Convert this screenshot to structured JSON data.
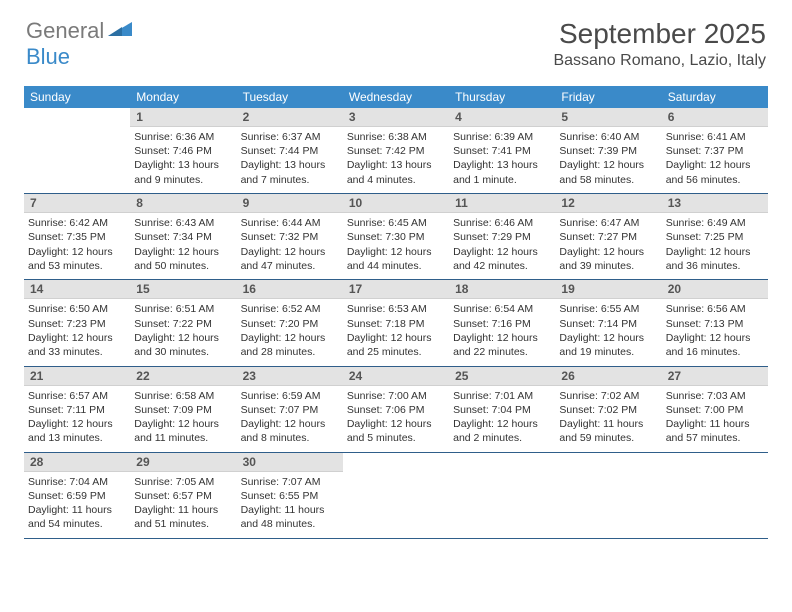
{
  "brand": {
    "general": "General",
    "blue": "Blue"
  },
  "title": "September 2025",
  "location": "Bassano Romano, Lazio, Italy",
  "colors": {
    "header_bg": "#3a8ac9",
    "header_text": "#ffffff",
    "daynum_bg": "#e3e3e3",
    "sep": "#2f5e8a",
    "text": "#333333",
    "muted": "#7a7a7a"
  },
  "weekdays": [
    "Sunday",
    "Monday",
    "Tuesday",
    "Wednesday",
    "Thursday",
    "Friday",
    "Saturday"
  ],
  "weeks": [
    [
      null,
      {
        "n": "1",
        "sr": "6:36 AM",
        "ss": "7:46 PM",
        "dl": "13 hours and 9 minutes."
      },
      {
        "n": "2",
        "sr": "6:37 AM",
        "ss": "7:44 PM",
        "dl": "13 hours and 7 minutes."
      },
      {
        "n": "3",
        "sr": "6:38 AM",
        "ss": "7:42 PM",
        "dl": "13 hours and 4 minutes."
      },
      {
        "n": "4",
        "sr": "6:39 AM",
        "ss": "7:41 PM",
        "dl": "13 hours and 1 minute."
      },
      {
        "n": "5",
        "sr": "6:40 AM",
        "ss": "7:39 PM",
        "dl": "12 hours and 58 minutes."
      },
      {
        "n": "6",
        "sr": "6:41 AM",
        "ss": "7:37 PM",
        "dl": "12 hours and 56 minutes."
      }
    ],
    [
      {
        "n": "7",
        "sr": "6:42 AM",
        "ss": "7:35 PM",
        "dl": "12 hours and 53 minutes."
      },
      {
        "n": "8",
        "sr": "6:43 AM",
        "ss": "7:34 PM",
        "dl": "12 hours and 50 minutes."
      },
      {
        "n": "9",
        "sr": "6:44 AM",
        "ss": "7:32 PM",
        "dl": "12 hours and 47 minutes."
      },
      {
        "n": "10",
        "sr": "6:45 AM",
        "ss": "7:30 PM",
        "dl": "12 hours and 44 minutes."
      },
      {
        "n": "11",
        "sr": "6:46 AM",
        "ss": "7:29 PM",
        "dl": "12 hours and 42 minutes."
      },
      {
        "n": "12",
        "sr": "6:47 AM",
        "ss": "7:27 PM",
        "dl": "12 hours and 39 minutes."
      },
      {
        "n": "13",
        "sr": "6:49 AM",
        "ss": "7:25 PM",
        "dl": "12 hours and 36 minutes."
      }
    ],
    [
      {
        "n": "14",
        "sr": "6:50 AM",
        "ss": "7:23 PM",
        "dl": "12 hours and 33 minutes."
      },
      {
        "n": "15",
        "sr": "6:51 AM",
        "ss": "7:22 PM",
        "dl": "12 hours and 30 minutes."
      },
      {
        "n": "16",
        "sr": "6:52 AM",
        "ss": "7:20 PM",
        "dl": "12 hours and 28 minutes."
      },
      {
        "n": "17",
        "sr": "6:53 AM",
        "ss": "7:18 PM",
        "dl": "12 hours and 25 minutes."
      },
      {
        "n": "18",
        "sr": "6:54 AM",
        "ss": "7:16 PM",
        "dl": "12 hours and 22 minutes."
      },
      {
        "n": "19",
        "sr": "6:55 AM",
        "ss": "7:14 PM",
        "dl": "12 hours and 19 minutes."
      },
      {
        "n": "20",
        "sr": "6:56 AM",
        "ss": "7:13 PM",
        "dl": "12 hours and 16 minutes."
      }
    ],
    [
      {
        "n": "21",
        "sr": "6:57 AM",
        "ss": "7:11 PM",
        "dl": "12 hours and 13 minutes."
      },
      {
        "n": "22",
        "sr": "6:58 AM",
        "ss": "7:09 PM",
        "dl": "12 hours and 11 minutes."
      },
      {
        "n": "23",
        "sr": "6:59 AM",
        "ss": "7:07 PM",
        "dl": "12 hours and 8 minutes."
      },
      {
        "n": "24",
        "sr": "7:00 AM",
        "ss": "7:06 PM",
        "dl": "12 hours and 5 minutes."
      },
      {
        "n": "25",
        "sr": "7:01 AM",
        "ss": "7:04 PM",
        "dl": "12 hours and 2 minutes."
      },
      {
        "n": "26",
        "sr": "7:02 AM",
        "ss": "7:02 PM",
        "dl": "11 hours and 59 minutes."
      },
      {
        "n": "27",
        "sr": "7:03 AM",
        "ss": "7:00 PM",
        "dl": "11 hours and 57 minutes."
      }
    ],
    [
      {
        "n": "28",
        "sr": "7:04 AM",
        "ss": "6:59 PM",
        "dl": "11 hours and 54 minutes."
      },
      {
        "n": "29",
        "sr": "7:05 AM",
        "ss": "6:57 PM",
        "dl": "11 hours and 51 minutes."
      },
      {
        "n": "30",
        "sr": "7:07 AM",
        "ss": "6:55 PM",
        "dl": "11 hours and 48 minutes."
      },
      null,
      null,
      null,
      null
    ]
  ],
  "labels": {
    "sunrise": "Sunrise:",
    "sunset": "Sunset:",
    "daylight": "Daylight:"
  }
}
